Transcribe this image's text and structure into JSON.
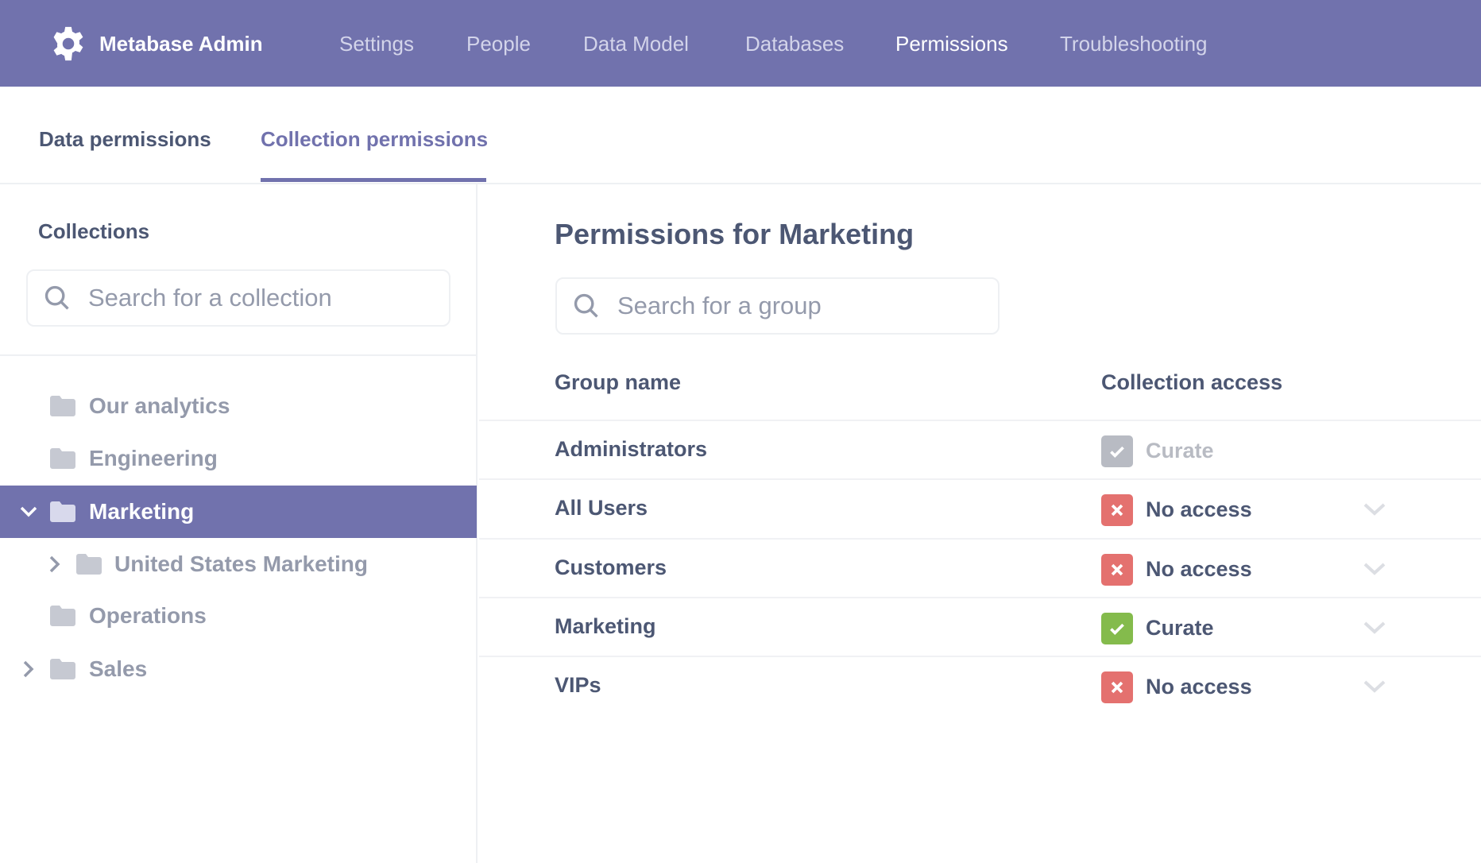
{
  "header": {
    "title": "Metabase Admin",
    "nav": [
      {
        "label": "Settings"
      },
      {
        "label": "People"
      },
      {
        "label": "Data Model"
      },
      {
        "label": "Databases"
      },
      {
        "label": "Permissions",
        "active": true
      },
      {
        "label": "Troubleshooting"
      }
    ],
    "bg": "#7172ad"
  },
  "tabs": [
    {
      "label": "Data permissions"
    },
    {
      "label": "Collection permissions",
      "active": true
    }
  ],
  "sidebar": {
    "title": "Collections",
    "search_placeholder": "Search for a collection",
    "items": [
      {
        "label": "Our analytics"
      },
      {
        "label": "Engineering"
      },
      {
        "label": "Marketing",
        "selected": true,
        "expanded": true
      },
      {
        "label": "United States Marketing",
        "child": true,
        "collapsed": true
      },
      {
        "label": "Operations"
      },
      {
        "label": "Sales",
        "collapsed": true
      }
    ]
  },
  "main": {
    "title": "Permissions for Marketing",
    "search_placeholder": "Search for a group",
    "columns": {
      "group": "Group name",
      "access": "Collection access"
    },
    "rows": [
      {
        "group": "Administrators",
        "access": "Curate",
        "icon": "check-icon",
        "color": "#b8bbc3",
        "disabled": true
      },
      {
        "group": "All Users",
        "access": "No access",
        "icon": "close-icon",
        "color": "#e4716f"
      },
      {
        "group": "Customers",
        "access": "No access",
        "icon": "close-icon",
        "color": "#e4716f"
      },
      {
        "group": "Marketing",
        "access": "Curate",
        "icon": "check-icon",
        "color": "#84bb4c"
      },
      {
        "group": "VIPs",
        "access": "No access",
        "icon": "close-icon",
        "color": "#e4716f"
      }
    ]
  }
}
